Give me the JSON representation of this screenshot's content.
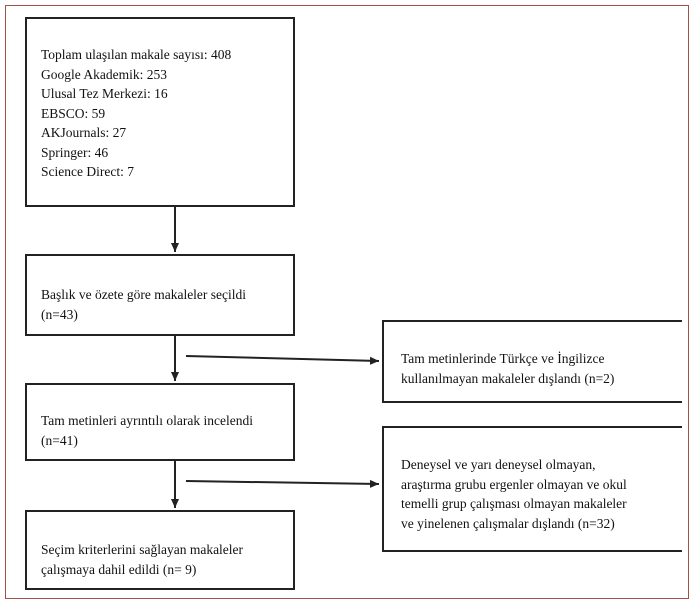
{
  "sources_box": {
    "lines": [
      "Toplam ulaşılan makale sayısı: 408",
      "Google Akademik: 253",
      "Ulusal Tez Merkezi: 16",
      "EBSCO: 59",
      "AKJournals: 27",
      "Springer: 46",
      "Science Direct: 7"
    ]
  },
  "screening_box": {
    "lines": [
      "Başlık ve özete göre makaleler seçildi",
      "(n=43)"
    ]
  },
  "fulltext_box": {
    "lines": [
      "Tam metinleri ayrıntılı olarak incelendi",
      "(n=41)"
    ]
  },
  "included_box": {
    "lines": [
      "Seçim kriterlerini sağlayan makaleler",
      "çalışmaya dahil edildi (n= 9)"
    ]
  },
  "exclusion_1": {
    "lines": [
      "Tam metinlerinde Türkçe ve İngilizce",
      "kullanılmayan makaleler dışlandı (n=2)"
    ]
  },
  "exclusion_2": {
    "lines": [
      "Deneysel ve yarı deneysel olmayan,",
      "araştırma grubu ergenler olmayan ve okul",
      "temelli grup çalışması olmayan makaleler",
      "ve yinelenen çalışmalar dışlandı (n=32)"
    ]
  },
  "colors": {
    "frame": "#a1514a",
    "stroke": "#222222"
  }
}
